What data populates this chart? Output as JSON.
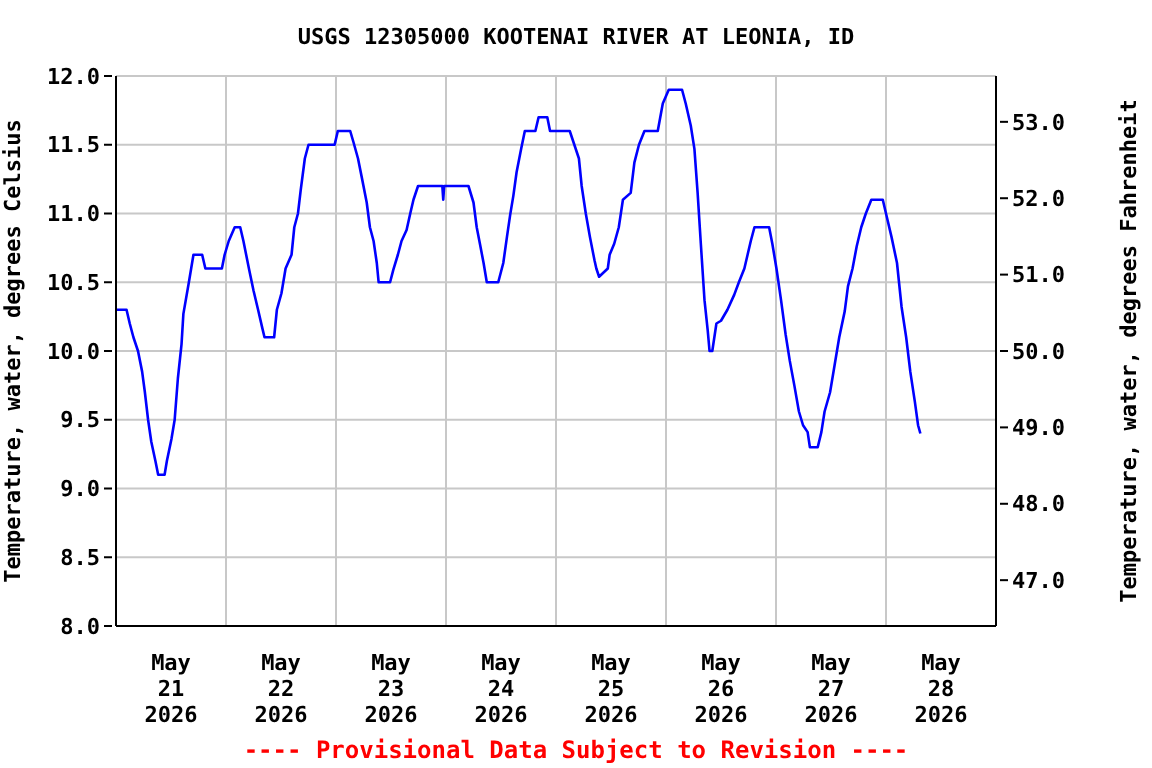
{
  "chart_data": {
    "type": "line",
    "title": "USGS 12305000 KOOTENAI RIVER AT LEONIA, ID",
    "ylabel": "Temperature, water, degrees Celsius",
    "y2label": "Temperature, water, degrees Fahrenheit",
    "annotations": [
      "---- Provisional Data Subject to Revision ----"
    ],
    "xlim": [
      "2026-05-21T00:00",
      "2026-05-29T00:00"
    ],
    "xticks": [
      {
        "value": "2026-05-21T12:00",
        "label": "May\n21\n2026"
      },
      {
        "value": "2026-05-22T12:00",
        "label": "May\n22\n2026"
      },
      {
        "value": "2026-05-23T12:00",
        "label": "May\n23\n2026"
      },
      {
        "value": "2026-05-24T12:00",
        "label": "May\n24\n2026"
      },
      {
        "value": "2026-05-25T12:00",
        "label": "May\n25\n2026"
      },
      {
        "value": "2026-05-26T12:00",
        "label": "May\n26\n2026"
      },
      {
        "value": "2026-05-27T12:00",
        "label": "May\n27\n2026"
      },
      {
        "value": "2026-05-28T12:00",
        "label": "May\n28\n2026"
      }
    ],
    "legend": false,
    "marker": "none",
    "ylim": [
      8,
      12
    ],
    "yticks": [
      {
        "value": 8,
        "label": "8.0"
      },
      {
        "value": 8.5,
        "label": "8.5"
      },
      {
        "value": 9,
        "label": "9.0"
      },
      {
        "value": 9.5,
        "label": "9.5"
      },
      {
        "value": 10,
        "label": "10.0"
      },
      {
        "value": 10.5,
        "label": "10.5"
      },
      {
        "value": 11,
        "label": "11.0"
      },
      {
        "value": 11.5,
        "label": "11.5"
      },
      {
        "value": 12,
        "label": "12.0"
      }
    ],
    "y2lim": [
      46.4,
      53.6
    ],
    "y2ticks": [
      {
        "value": 47,
        "label": "47.0"
      },
      {
        "value": 48,
        "label": "48.0"
      },
      {
        "value": 49,
        "label": "49.0"
      },
      {
        "value": 50,
        "label": "50.0"
      },
      {
        "value": 51,
        "label": "51.0"
      },
      {
        "value": 52,
        "label": "52.0"
      },
      {
        "value": 53,
        "label": "53.0"
      }
    ],
    "grid": true,
    "line_style": "solid",
    "series": [
      {
        "color": "#0000ff",
        "x": [
          "2026-05-21T00:00",
          "2026-05-21T02:18",
          "2026-05-21T03:00",
          "2026-05-21T03:48",
          "2026-05-21T04:48",
          "2026-05-21T05:42",
          "2026-05-21T06:18",
          "2026-05-21T07:00",
          "2026-05-21T07:42",
          "2026-05-21T08:36",
          "2026-05-21T09:12",
          "2026-05-21T10:36",
          "2026-05-21T11:06",
          "2026-05-21T12:06",
          "2026-05-21T12:48",
          "2026-05-21T13:30",
          "2026-05-21T14:18",
          "2026-05-21T14:42",
          "2026-05-21T15:54",
          "2026-05-21T16:24",
          "2026-05-21T16:54",
          "2026-05-21T18:48",
          "2026-05-21T19:30",
          "2026-05-21T23:06",
          "2026-05-21T23:42",
          "2026-05-22T00:36",
          "2026-05-22T01:54",
          "2026-05-22T03:06",
          "2026-05-22T03:48",
          "2026-05-22T05:00",
          "2026-05-22T06:00",
          "2026-05-22T07:00",
          "2026-05-22T07:54",
          "2026-05-22T08:24",
          "2026-05-22T10:30",
          "2026-05-22T11:06",
          "2026-05-22T12:06",
          "2026-05-22T13:00",
          "2026-05-22T14:18",
          "2026-05-22T14:54",
          "2026-05-22T15:42",
          "2026-05-22T16:18",
          "2026-05-22T17:12",
          "2026-05-22T18:00",
          "2026-05-22T23:42",
          "2026-05-23T00:24",
          "2026-05-23T03:06",
          "2026-05-23T03:48",
          "2026-05-23T04:48",
          "2026-05-23T05:42",
          "2026-05-23T06:42",
          "2026-05-23T07:24",
          "2026-05-23T08:12",
          "2026-05-23T08:54",
          "2026-05-23T09:18",
          "2026-05-23T11:48",
          "2026-05-23T12:30",
          "2026-05-23T13:30",
          "2026-05-23T14:18",
          "2026-05-23T15:24",
          "2026-05-23T16:12",
          "2026-05-23T16:54",
          "2026-05-23T17:54",
          "2026-05-23T23:12",
          "2026-05-23T23:24",
          "2026-05-23T23:36",
          "2026-05-24T04:54",
          "2026-05-24T06:00",
          "2026-05-24T06:42",
          "2026-05-24T07:24",
          "2026-05-24T08:12",
          "2026-05-24T08:54",
          "2026-05-24T11:24",
          "2026-05-24T12:30",
          "2026-05-24T13:18",
          "2026-05-24T14:00",
          "2026-05-24T14:42",
          "2026-05-24T15:24",
          "2026-05-24T16:24",
          "2026-05-24T17:12",
          "2026-05-24T19:30",
          "2026-05-24T20:12",
          "2026-05-24T22:06",
          "2026-05-24T22:42",
          "2026-05-25T03:00",
          "2026-05-25T04:00",
          "2026-05-25T05:00",
          "2026-05-25T05:36",
          "2026-05-25T06:30",
          "2026-05-25T07:24",
          "2026-05-25T08:24",
          "2026-05-25T08:48",
          "2026-05-25T09:24",
          "2026-05-25T11:18",
          "2026-05-25T11:42",
          "2026-05-25T12:42",
          "2026-05-25T13:42",
          "2026-05-25T14:36",
          "2026-05-25T16:18",
          "2026-05-25T17:06",
          "2026-05-25T18:06",
          "2026-05-25T19:18",
          "2026-05-25T22:12",
          "2026-05-25T23:18",
          "2026-05-26T00:36",
          "2026-05-26T03:30",
          "2026-05-26T04:18",
          "2026-05-26T05:24",
          "2026-05-26T06:12",
          "2026-05-26T06:54",
          "2026-05-26T07:36",
          "2026-05-26T08:24",
          "2026-05-26T09:06",
          "2026-05-26T09:30",
          "2026-05-26T10:06",
          "2026-05-26T11:00",
          "2026-05-26T12:00",
          "2026-05-26T13:24",
          "2026-05-26T14:54",
          "2026-05-26T15:54",
          "2026-05-26T17:06",
          "2026-05-26T17:48",
          "2026-05-26T18:30",
          "2026-05-26T19:18",
          "2026-05-26T22:30",
          "2026-05-26T23:12",
          "2026-05-27T00:06",
          "2026-05-27T01:06",
          "2026-05-27T02:06",
          "2026-05-27T03:00",
          "2026-05-27T04:00",
          "2026-05-27T05:00",
          "2026-05-27T05:54",
          "2026-05-27T06:54",
          "2026-05-27T07:24",
          "2026-05-27T09:06",
          "2026-05-27T09:54",
          "2026-05-27T10:36",
          "2026-05-27T11:48",
          "2026-05-27T12:48",
          "2026-05-27T13:48",
          "2026-05-27T15:00",
          "2026-05-27T15:42",
          "2026-05-27T16:42",
          "2026-05-27T17:36",
          "2026-05-27T18:36",
          "2026-05-27T19:36",
          "2026-05-27T20:48",
          "2026-05-27T23:18",
          "2026-05-28T00:00",
          "2026-05-28T01:12",
          "2026-05-28T02:24",
          "2026-05-28T03:24",
          "2026-05-28T04:24",
          "2026-05-28T05:18",
          "2026-05-28T06:18",
          "2026-05-28T07:00",
          "2026-05-28T07:30"
        ],
        "values": [
          10.3,
          10.3,
          10.2,
          10.1,
          10.0,
          9.85,
          9.7,
          9.5,
          9.34,
          9.2,
          9.1,
          9.1,
          9.2,
          9.36,
          9.5,
          9.8,
          10.05,
          10.27,
          10.5,
          10.6,
          10.7,
          10.7,
          10.6,
          10.6,
          10.7,
          10.8,
          10.9,
          10.9,
          10.8,
          10.6,
          10.44,
          10.3,
          10.17,
          10.1,
          10.1,
          10.3,
          10.42,
          10.6,
          10.7,
          10.9,
          11.0,
          11.17,
          11.4,
          11.5,
          11.5,
          11.6,
          11.6,
          11.52,
          11.4,
          11.25,
          11.08,
          10.9,
          10.8,
          10.64,
          10.5,
          10.5,
          10.59,
          10.7,
          10.8,
          10.88,
          11.0,
          11.1,
          11.2,
          11.2,
          11.1,
          11.2,
          11.2,
          11.08,
          10.9,
          10.78,
          10.64,
          10.5,
          10.5,
          10.64,
          10.83,
          10.99,
          11.13,
          11.3,
          11.47,
          11.6,
          11.6,
          11.7,
          11.7,
          11.6,
          11.6,
          11.5,
          11.4,
          11.2,
          11.0,
          10.83,
          10.66,
          10.6,
          10.54,
          10.6,
          10.7,
          10.78,
          10.9,
          11.1,
          11.15,
          11.37,
          11.5,
          11.6,
          11.6,
          11.8,
          11.9,
          11.9,
          11.8,
          11.64,
          11.47,
          11.15,
          10.78,
          10.37,
          10.15,
          10.0,
          10.0,
          10.2,
          10.22,
          10.3,
          10.41,
          10.5,
          10.6,
          10.7,
          10.8,
          10.9,
          10.9,
          10.78,
          10.6,
          10.37,
          10.12,
          9.93,
          9.75,
          9.56,
          9.46,
          9.41,
          9.3,
          9.3,
          9.41,
          9.56,
          9.7,
          9.9,
          10.1,
          10.29,
          10.47,
          10.6,
          10.76,
          10.9,
          11.0,
          11.1,
          11.1,
          11.0,
          10.83,
          10.64,
          10.32,
          10.1,
          9.85,
          9.63,
          9.46,
          9.4
        ]
      }
    ]
  }
}
